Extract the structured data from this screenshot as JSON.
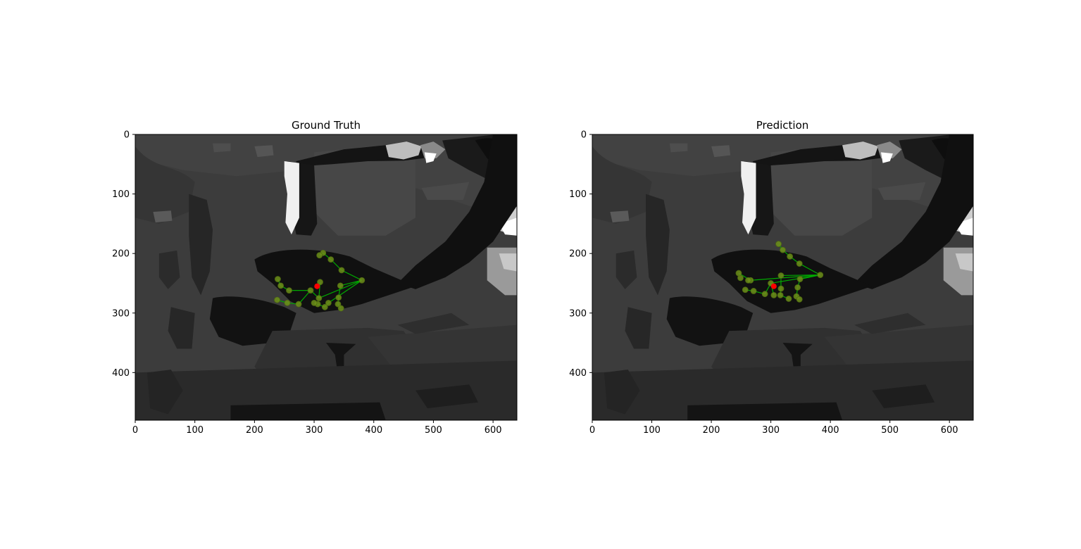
{
  "figure": {
    "background": "#ffffff"
  },
  "chart_data": [
    {
      "type": "scatter",
      "title": "Ground Truth",
      "xlabel": "",
      "ylabel": "",
      "xlim": [
        0,
        640
      ],
      "ylim": [
        480,
        0
      ],
      "y_axis_inverted": true,
      "grid": false,
      "background_image": "grayscale-depth-map",
      "x_ticks": [
        0,
        100,
        200,
        300,
        400,
        500,
        600
      ],
      "y_ticks": [
        0,
        100,
        200,
        300,
        400
      ],
      "x_tick_labels": [
        "0",
        "100",
        "200",
        "300",
        "400",
        "500",
        "600"
      ],
      "y_tick_labels": [
        "0",
        "100",
        "200",
        "300",
        "400"
      ],
      "joint_color": "#6f8f1a",
      "bone_color": "#00aa00",
      "center_color": "#ff0000",
      "center": [
        305,
        255
      ],
      "joints": [
        [
          380,
          245
        ],
        [
          346,
          228
        ],
        [
          328,
          210
        ],
        [
          315,
          199
        ],
        [
          309,
          203
        ],
        [
          344,
          254
        ],
        [
          341,
          274
        ],
        [
          340,
          285
        ],
        [
          345,
          292
        ],
        [
          324,
          283
        ],
        [
          318,
          290
        ],
        [
          306,
          285
        ],
        [
          300,
          283
        ],
        [
          308,
          275
        ],
        [
          310,
          248
        ],
        [
          294,
          262
        ],
        [
          274,
          285
        ],
        [
          255,
          283
        ],
        [
          238,
          278
        ],
        [
          258,
          262
        ],
        [
          244,
          254
        ],
        [
          239,
          243
        ]
      ],
      "bones": [
        [
          0,
          1
        ],
        [
          1,
          2
        ],
        [
          2,
          3
        ],
        [
          3,
          4
        ],
        [
          0,
          5
        ],
        [
          5,
          6
        ],
        [
          6,
          7
        ],
        [
          7,
          8
        ],
        [
          0,
          9
        ],
        [
          9,
          10
        ],
        [
          10,
          11
        ],
        [
          11,
          12
        ],
        [
          0,
          13
        ],
        [
          13,
          14
        ],
        [
          13,
          15
        ],
        [
          15,
          16
        ],
        [
          16,
          17
        ],
        [
          17,
          18
        ],
        [
          15,
          19
        ],
        [
          19,
          20
        ],
        [
          20,
          21
        ]
      ]
    },
    {
      "type": "scatter",
      "title": "Prediction",
      "xlabel": "",
      "ylabel": "",
      "xlim": [
        0,
        640
      ],
      "ylim": [
        480,
        0
      ],
      "y_axis_inverted": true,
      "grid": false,
      "background_image": "grayscale-depth-map",
      "x_ticks": [
        0,
        100,
        200,
        300,
        400,
        500,
        600
      ],
      "y_ticks": [
        0,
        100,
        200,
        300,
        400
      ],
      "x_tick_labels": [
        "0",
        "100",
        "200",
        "300",
        "400",
        "500",
        "600"
      ],
      "y_tick_labels": [
        "0",
        "100",
        "200",
        "300",
        "400"
      ],
      "joint_color": "#6f8f1a",
      "bone_color": "#00aa00",
      "center_color": "#ff0000",
      "center": [
        305,
        255
      ],
      "joints": [
        [
          383,
          236
        ],
        [
          348,
          217
        ],
        [
          332,
          205
        ],
        [
          320,
          194
        ],
        [
          313,
          184
        ],
        [
          349,
          243
        ],
        [
          345,
          257
        ],
        [
          343,
          272
        ],
        [
          348,
          277
        ],
        [
          317,
          237
        ],
        [
          317,
          259
        ],
        [
          316,
          270
        ],
        [
          330,
          276
        ],
        [
          300,
          250
        ],
        [
          305,
          270
        ],
        [
          290,
          268
        ],
        [
          271,
          263
        ],
        [
          257,
          261
        ],
        [
          249,
          241
        ],
        [
          266,
          245
        ],
        [
          246,
          233
        ],
        [
          262,
          245
        ]
      ],
      "bones": [
        [
          0,
          1
        ],
        [
          1,
          2
        ],
        [
          2,
          3
        ],
        [
          3,
          4
        ],
        [
          0,
          5
        ],
        [
          5,
          6
        ],
        [
          6,
          7
        ],
        [
          7,
          8
        ],
        [
          0,
          9
        ],
        [
          9,
          10
        ],
        [
          10,
          11
        ],
        [
          11,
          12
        ],
        [
          0,
          13
        ],
        [
          13,
          14
        ],
        [
          13,
          15
        ],
        [
          15,
          16
        ],
        [
          16,
          17
        ],
        [
          0,
          19
        ],
        [
          19,
          20
        ],
        [
          19,
          21
        ]
      ]
    }
  ]
}
